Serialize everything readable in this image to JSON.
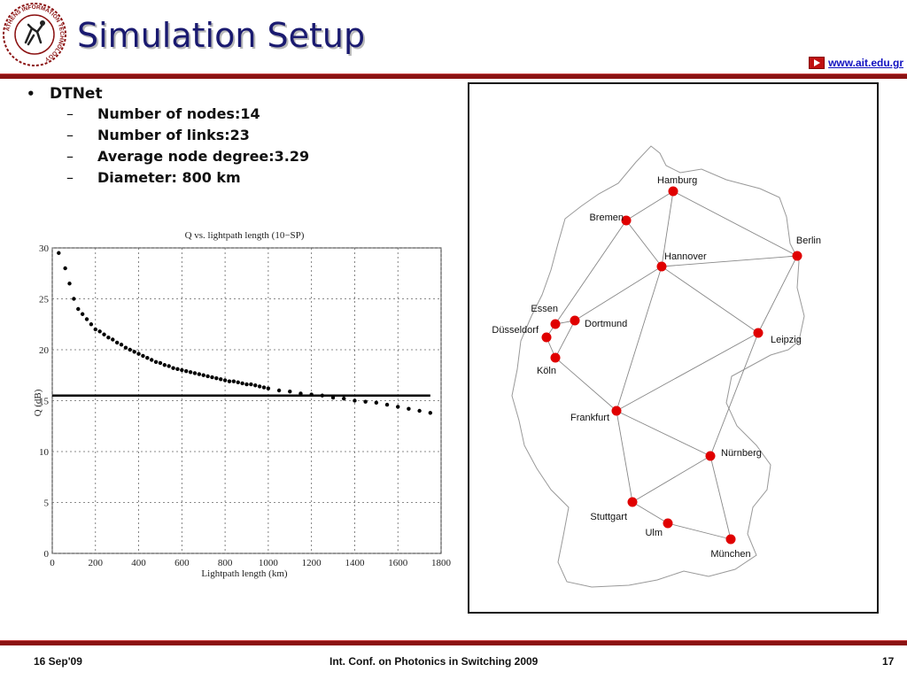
{
  "header": {
    "title": "Simulation Setup",
    "url": "www.ait.edu.gr",
    "logo_text": "ATHENS INFORMATION TECHNOLOGY"
  },
  "bullets": {
    "main": "DTNet",
    "items": [
      "Number of nodes:14",
      "Number of links:23",
      "Average node degree:3.29",
      "Diameter: 800 km"
    ]
  },
  "chart_data": {
    "type": "scatter",
    "title": "Q vs. lightpath length (10−SP)",
    "xlabel": "Lightpath length (km)",
    "ylabel": "Q (dB)",
    "xlim": [
      0,
      1800
    ],
    "ylim": [
      0,
      30
    ],
    "xticks": [
      "0",
      "200",
      "400",
      "600",
      "800",
      "1000",
      "1200",
      "1400",
      "1600",
      "1800"
    ],
    "yticks": [
      "0",
      "5",
      "10",
      "15",
      "20",
      "25",
      "30"
    ],
    "threshold_y": 15.5,
    "grid": true,
    "x": [
      30,
      60,
      80,
      100,
      120,
      140,
      160,
      180,
      200,
      220,
      240,
      260,
      280,
      300,
      320,
      340,
      360,
      380,
      400,
      420,
      440,
      460,
      480,
      500,
      520,
      540,
      560,
      580,
      600,
      620,
      640,
      660,
      680,
      700,
      720,
      740,
      760,
      780,
      800,
      820,
      840,
      860,
      880,
      900,
      920,
      940,
      960,
      980,
      1000,
      1050,
      1100,
      1150,
      1200,
      1250,
      1300,
      1350,
      1400,
      1450,
      1500,
      1550,
      1600,
      1650,
      1700,
      1750
    ],
    "y": [
      29.5,
      28.0,
      26.5,
      25.0,
      24.0,
      23.5,
      23.0,
      22.5,
      22.0,
      21.8,
      21.5,
      21.2,
      21.0,
      20.7,
      20.5,
      20.2,
      20.0,
      19.8,
      19.6,
      19.4,
      19.2,
      19.0,
      18.8,
      18.7,
      18.5,
      18.4,
      18.2,
      18.1,
      18.0,
      17.9,
      17.8,
      17.7,
      17.6,
      17.5,
      17.4,
      17.3,
      17.2,
      17.1,
      17.0,
      16.9,
      16.9,
      16.8,
      16.7,
      16.6,
      16.6,
      16.5,
      16.4,
      16.3,
      16.2,
      16.0,
      15.9,
      15.7,
      15.6,
      15.5,
      15.3,
      15.2,
      15.0,
      14.9,
      14.8,
      14.6,
      14.4,
      14.2,
      14.0,
      13.8
    ]
  },
  "map": {
    "nodes": [
      {
        "name": "Hamburg"
      },
      {
        "name": "Bremen"
      },
      {
        "name": "Berlin"
      },
      {
        "name": "Hannover"
      },
      {
        "name": "Essen"
      },
      {
        "name": "Düsseldorf"
      },
      {
        "name": "Dortmund"
      },
      {
        "name": "Köln"
      },
      {
        "name": "Leipzig"
      },
      {
        "name": "Frankfurt"
      },
      {
        "name": "Nürnberg"
      },
      {
        "name": "Stuttgart"
      },
      {
        "name": "Ulm"
      },
      {
        "name": "München"
      }
    ]
  },
  "footer": {
    "date": "16 Sep'09",
    "conference": "Int. Conf. on Photonics in Switching 2009",
    "page": "17"
  },
  "colors": {
    "title": "#1a1a70",
    "rule": "#8b1212",
    "node": "#e00000",
    "url": "#1010c0"
  }
}
